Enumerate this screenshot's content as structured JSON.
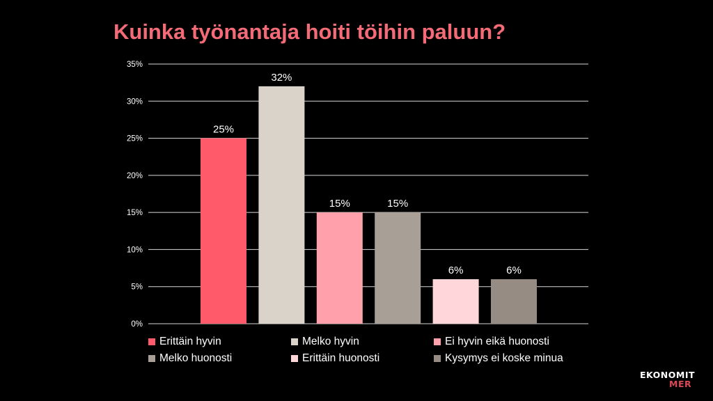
{
  "colors": {
    "title": "#f26b77",
    "gridline": "#d9d9d9",
    "axis_text": "#ffffff",
    "background": "#000000"
  },
  "chart_data": {
    "type": "bar",
    "title": "Kuinka työnantaja hoiti töihin paluun?",
    "categories": [
      "Erittäin hyvin",
      "Melko hyvin",
      "Ei hyvin eikä huonosti",
      "Melko huonosti",
      "Erittäin huonosti",
      "Kysymys ei koske minua"
    ],
    "values": [
      25,
      32,
      15,
      15,
      6,
      6
    ],
    "value_labels": [
      "25%",
      "32%",
      "15%",
      "15%",
      "6%",
      "6%"
    ],
    "bar_colors": [
      "#ff5a6a",
      "#d9d3ca",
      "#ffa0aa",
      "#a89f96",
      "#ffd6da",
      "#968c84"
    ],
    "ylim": [
      0,
      35
    ],
    "yticks": [
      0,
      5,
      10,
      15,
      20,
      25,
      30,
      35
    ],
    "ytick_labels": [
      "0%",
      "5%",
      "10%",
      "15%",
      "20%",
      "25%",
      "30%",
      "35%"
    ],
    "grid": true,
    "legend_position": "bottom"
  },
  "logo": {
    "line1": "EKONOMIT",
    "line2": "MER"
  }
}
